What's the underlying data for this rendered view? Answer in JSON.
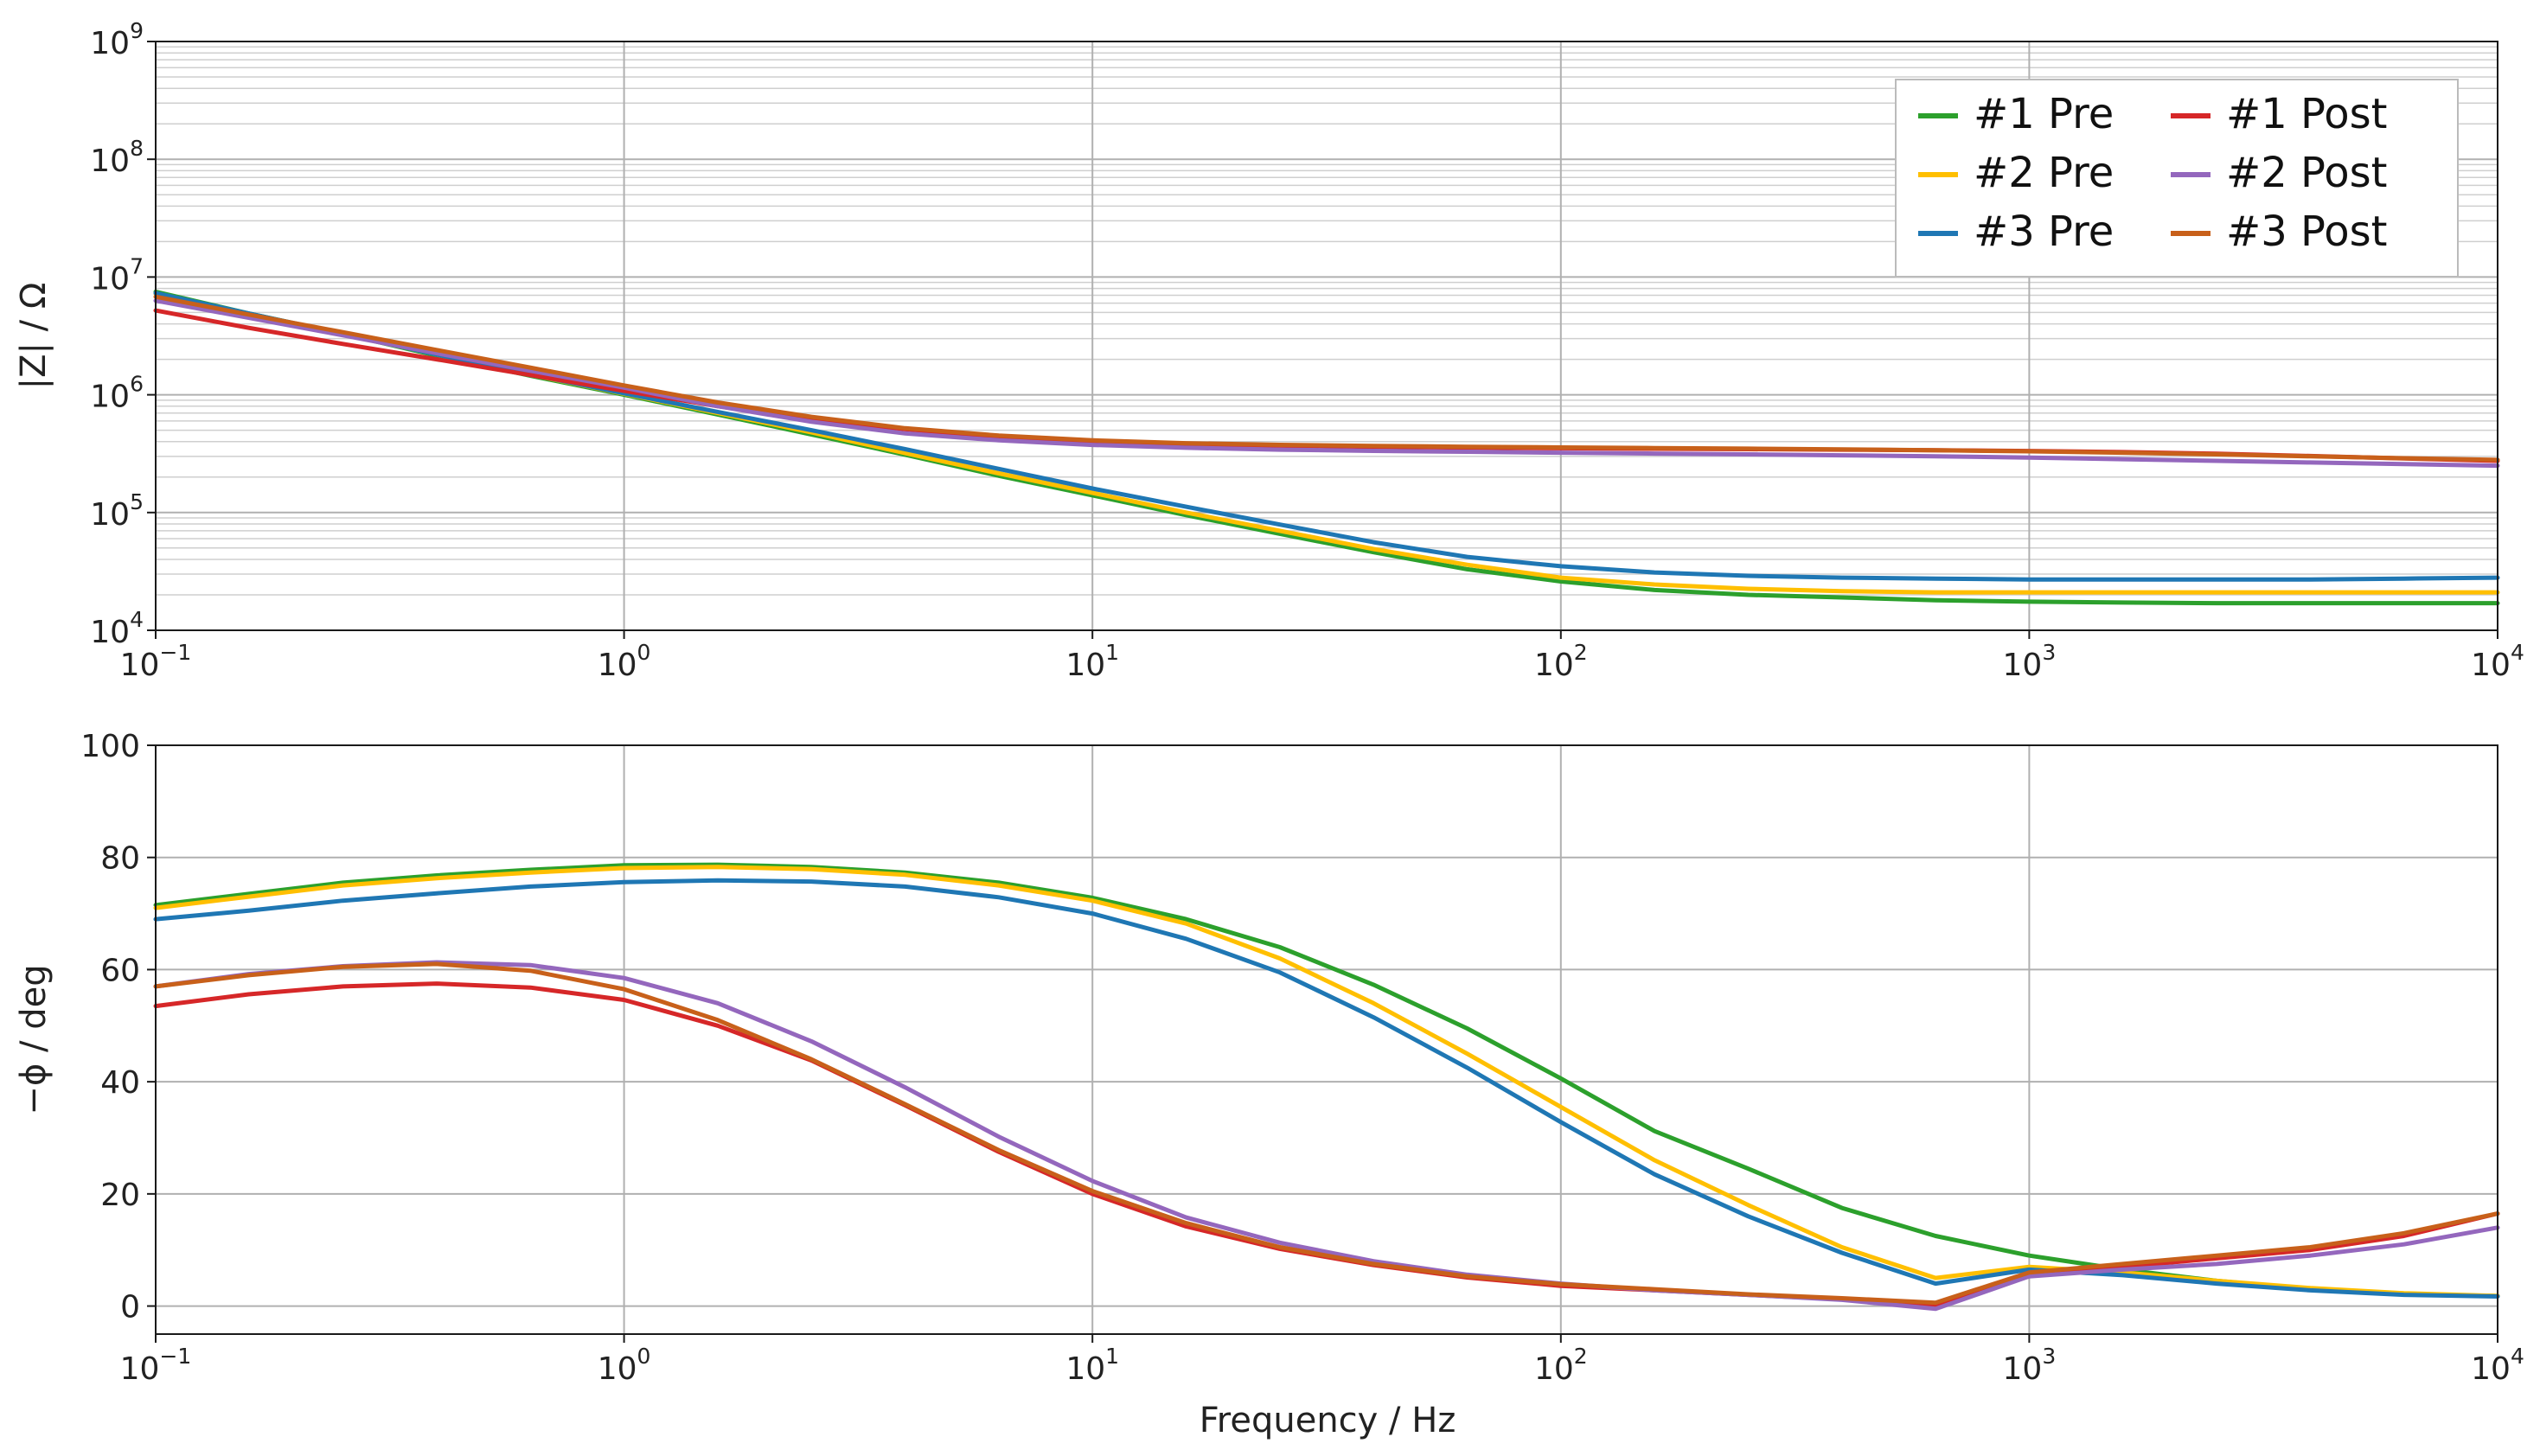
{
  "chart_data": [
    {
      "type": "line",
      "ylabel": "|Z|  / Ω",
      "xlabel": "",
      "xscale": "log",
      "yscale": "log",
      "xlim": [
        0.1,
        10000
      ],
      "ylim": [
        10000,
        1000000000
      ],
      "grid": "major and minor",
      "legend": "top-right",
      "x_ticks": [
        {
          "base": "10",
          "exp": "−1"
        },
        {
          "base": "10",
          "exp": "0"
        },
        {
          "base": "10",
          "exp": "1"
        },
        {
          "base": "10",
          "exp": "2"
        },
        {
          "base": "10",
          "exp": "3"
        },
        {
          "base": "10",
          "exp": "4"
        }
      ],
      "y_ticks": [
        {
          "base": "10",
          "exp": "4"
        },
        {
          "base": "10",
          "exp": "5"
        },
        {
          "base": "10",
          "exp": "6"
        },
        {
          "base": "10",
          "exp": "7"
        },
        {
          "base": "10",
          "exp": "8"
        },
        {
          "base": "10",
          "exp": "9"
        }
      ],
      "x": [
        0.1,
        0.158,
        0.251,
        0.398,
        0.631,
        1.0,
        1.585,
        2.512,
        3.981,
        6.31,
        10,
        15.85,
        25.12,
        39.81,
        63.1,
        100,
        158.5,
        251.2,
        398.1,
        631,
        1000,
        1585,
        2512,
        3981,
        6310,
        10000
      ],
      "series": [
        {
          "name": "#1 Pre",
          "color": "#2ca02c",
          "values": [
            7500000,
            4900000,
            3300000,
            2150000,
            1450000,
            1000000,
            680000,
            460000,
            310000,
            205000,
            140000,
            95000,
            66000,
            46000,
            33000,
            26000,
            22000,
            20000,
            19000,
            18000,
            17500,
            17200,
            17000,
            17000,
            17000,
            17000
          ]
        },
        {
          "name": "#2 Pre",
          "color": "#ffbf00",
          "values": [
            7200000,
            4800000,
            3300000,
            2200000,
            1480000,
            1020000,
            700000,
            480000,
            320000,
            215000,
            147000,
            100000,
            70000,
            49000,
            36000,
            28000,
            24500,
            22500,
            21500,
            21000,
            21000,
            21000,
            21000,
            21000,
            21000,
            21000
          ]
        },
        {
          "name": "#3 Pre",
          "color": "#1f77b4",
          "values": [
            7300000,
            4900000,
            3300000,
            2200000,
            1490000,
            1030000,
            715000,
            500000,
            345000,
            235000,
            160000,
            112000,
            79000,
            56000,
            42000,
            35000,
            31000,
            29000,
            28000,
            27500,
            27000,
            27000,
            27000,
            27000,
            27500,
            28000
          ]
        },
        {
          "name": "#1 Post",
          "color": "#d62728",
          "values": [
            5200000,
            3700000,
            2700000,
            2000000,
            1470000,
            1080000,
            800000,
            620000,
            510000,
            440000,
            400000,
            380000,
            370000,
            362000,
            356000,
            352000,
            348000,
            345000,
            342000,
            338000,
            333000,
            326000,
            316000,
            302000,
            288000,
            275000
          ]
        },
        {
          "name": "#2 Post",
          "color": "#9467bd",
          "values": [
            6300000,
            4500000,
            3200000,
            2250000,
            1600000,
            1150000,
            800000,
            590000,
            470000,
            410000,
            375000,
            355000,
            342000,
            334000,
            328000,
            322000,
            317000,
            312000,
            306000,
            300000,
            293000,
            284000,
            275000,
            266000,
            258000,
            250000
          ]
        },
        {
          "name": "#3 Post",
          "color": "#c8601a",
          "values": [
            6800000,
            4800000,
            3400000,
            2400000,
            1700000,
            1200000,
            860000,
            650000,
            520000,
            450000,
            410000,
            388000,
            376000,
            368000,
            362000,
            357000,
            353000,
            349000,
            344000,
            338000,
            331000,
            322000,
            312000,
            300000,
            289000,
            280000
          ]
        }
      ]
    },
    {
      "type": "line",
      "ylabel": "−ϕ  / deg",
      "xlabel": "Frequency  / Hz",
      "xscale": "log",
      "xlim": [
        0.1,
        10000
      ],
      "ylim": [
        -5,
        100
      ],
      "grid": "major",
      "x_ticks": [
        {
          "base": "10",
          "exp": "−1"
        },
        {
          "base": "10",
          "exp": "0"
        },
        {
          "base": "10",
          "exp": "1"
        },
        {
          "base": "10",
          "exp": "2"
        },
        {
          "base": "10",
          "exp": "3"
        },
        {
          "base": "10",
          "exp": "4"
        }
      ],
      "y_ticks": [
        "0",
        "20",
        "40",
        "60",
        "80",
        "100"
      ],
      "y_tick_values": [
        0,
        20,
        40,
        60,
        80,
        100
      ],
      "x": [
        0.1,
        0.158,
        0.251,
        0.398,
        0.631,
        1.0,
        1.585,
        2.512,
        3.981,
        6.31,
        10,
        15.85,
        25.12,
        39.81,
        63.1,
        100,
        158.5,
        251.2,
        398.1,
        631,
        1000,
        1585,
        2512,
        3981,
        6310,
        10000
      ],
      "series": [
        {
          "name": "#1 Pre",
          "color": "#2ca02c",
          "values": [
            71.5,
            73.5,
            75.5,
            76.8,
            77.8,
            78.6,
            78.7,
            78.3,
            77.3,
            75.5,
            72.8,
            69,
            64,
            57.3,
            49.5,
            40.6,
            31.2,
            24.5,
            17.5,
            12.5,
            9,
            6.5,
            4.5,
            3,
            2.1,
            1.8
          ]
        },
        {
          "name": "#2 Pre",
          "color": "#ffbf00",
          "values": [
            71,
            73,
            75,
            76.3,
            77.3,
            78.1,
            78.3,
            77.9,
            76.9,
            75,
            72.3,
            68.2,
            62,
            54,
            45,
            35.5,
            26,
            18,
            10.5,
            5,
            7,
            6,
            4.5,
            3.2,
            2.3,
            1.8
          ]
        },
        {
          "name": "#3 Pre",
          "color": "#1f77b4",
          "values": [
            69,
            70.5,
            72.3,
            73.6,
            74.8,
            75.6,
            75.9,
            75.7,
            74.8,
            72.9,
            70,
            65.5,
            59.5,
            51.5,
            42.5,
            32.8,
            23.5,
            16,
            9.5,
            4,
            6.5,
            5.5,
            4,
            2.8,
            2,
            1.7
          ]
        },
        {
          "name": "#1 Post",
          "color": "#d62728",
          "values": [
            53.5,
            55.6,
            57,
            57.5,
            56.8,
            54.6,
            50,
            43.8,
            35.8,
            27.5,
            20,
            14.2,
            10.2,
            7.3,
            5.1,
            3.6,
            2.8,
            2,
            1.2,
            0,
            5.5,
            7,
            8.5,
            10,
            12.5,
            16.5
          ]
        },
        {
          "name": "#2 Post",
          "color": "#9467bd",
          "values": [
            57,
            59.2,
            60.6,
            61.3,
            60.8,
            58.5,
            54,
            47.2,
            39,
            30.2,
            22.3,
            15.8,
            11.3,
            8,
            5.6,
            4,
            2.8,
            2,
            1.1,
            -0.5,
            5.3,
            6.5,
            7.5,
            9,
            11,
            14
          ]
        },
        {
          "name": "#3 Post",
          "color": "#c8601a",
          "values": [
            57,
            59,
            60.5,
            61,
            59.8,
            56.5,
            51,
            44,
            36,
            27.8,
            20.5,
            14.8,
            10.5,
            7.5,
            5.3,
            3.9,
            3,
            2.1,
            1.4,
            0.6,
            6,
            7.5,
            9,
            10.5,
            13,
            16.5
          ]
        }
      ]
    }
  ]
}
